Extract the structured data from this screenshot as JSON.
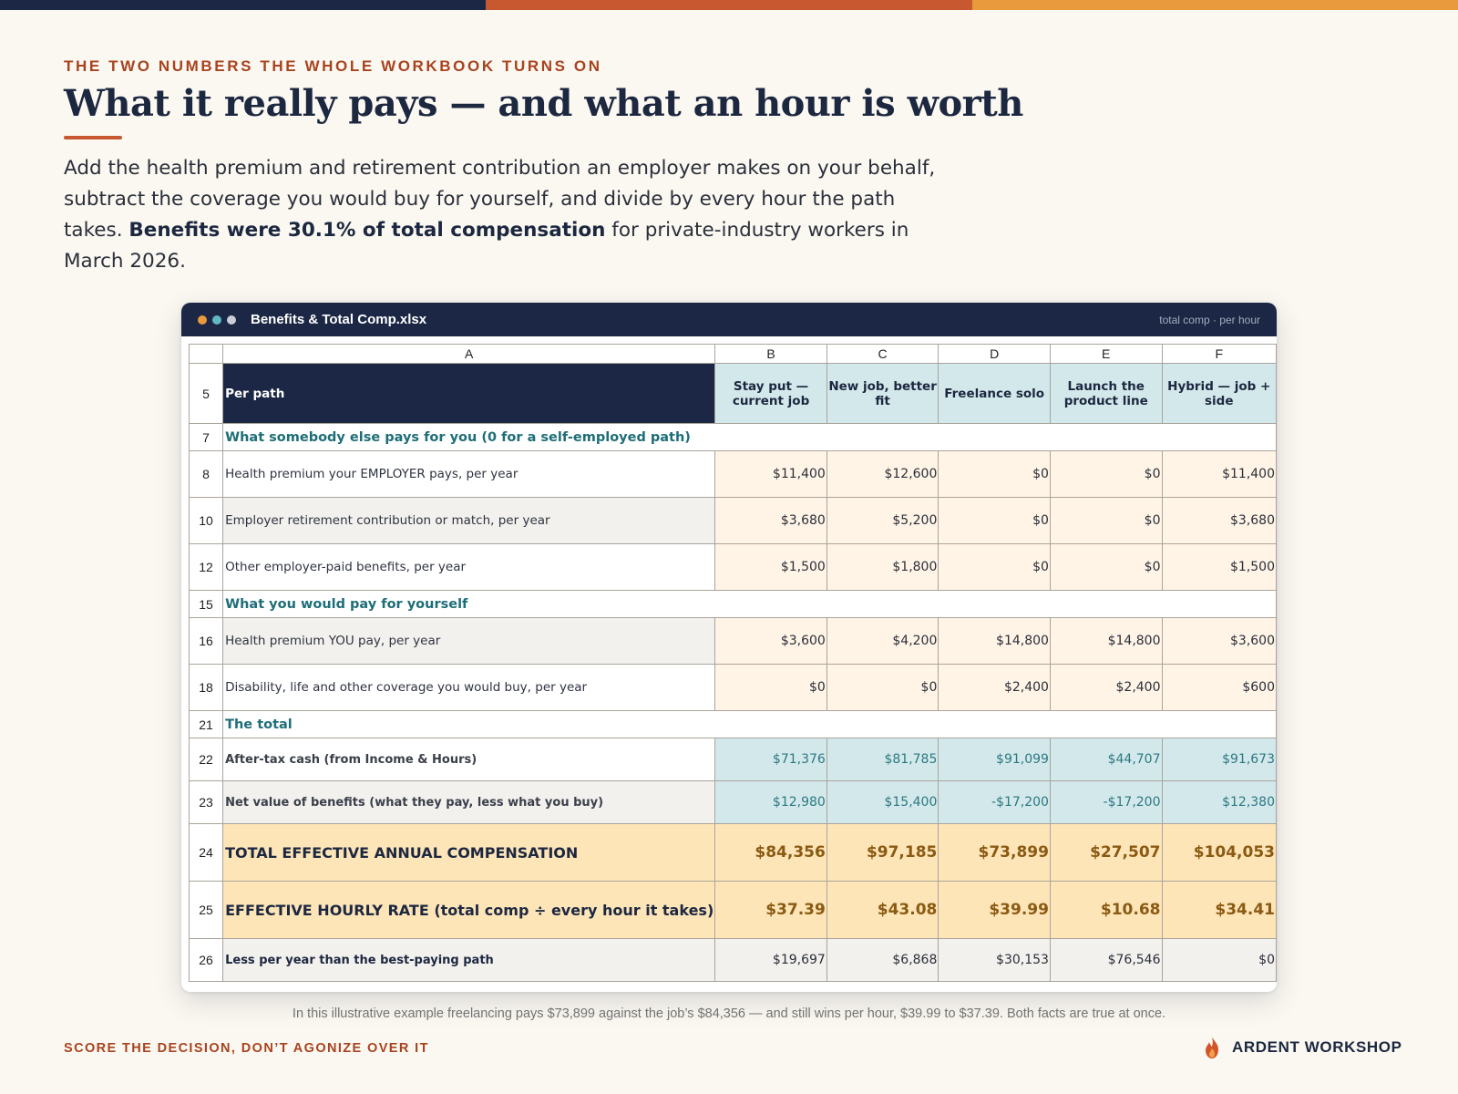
{
  "colors": {
    "navy": "#1b2744",
    "rust": "#c8582f",
    "amber": "#e89a3c",
    "teal": "#1e6e78",
    "input_fill": "#fff4e6",
    "calc_fill": "#d3e8ea",
    "total_fill": "#fde5b8"
  },
  "eyebrow": "THE TWO NUMBERS THE WHOLE WORKBOOK TURNS ON",
  "headline": "What it really pays — and what an hour is worth",
  "lede": {
    "before": "Add the health premium and retirement contribution an employer makes on your behalf, subtract the coverage you would buy for yourself, and divide by every hour the path takes. ",
    "bold": "Benefits were 30.1% of total compensation",
    "after": " for private-industry workers in March 2026."
  },
  "window": {
    "title": "Benefits & Total Comp.xlsx",
    "hint": "total comp · per hour",
    "dots": [
      "#e89a3c",
      "#5fb8c2",
      "#c9ced8"
    ]
  },
  "sheet": {
    "col_letters": [
      "A",
      "B",
      "C",
      "D",
      "E",
      "F"
    ],
    "header": {
      "row": "5",
      "label": "Per path",
      "paths": [
        "Stay put — current job",
        "New job, better fit",
        "Freelance solo",
        "Launch the product line",
        "Hybrid — job + side"
      ]
    },
    "sections": {
      "employer": {
        "row": "7",
        "label": "What somebody else pays for you  (0 for a self-employed path)"
      },
      "yourself": {
        "row": "15",
        "label": "What you would pay for yourself"
      },
      "total": {
        "row": "21",
        "label": "The total"
      }
    },
    "rows": {
      "r8": {
        "row": "8",
        "label": "Health premium your EMPLOYER pays, per year",
        "values": [
          "$11,400",
          "$12,600",
          "$0",
          "$0",
          "$11,400"
        ]
      },
      "r10": {
        "row": "10",
        "label": "Employer retirement contribution or match, per year",
        "values": [
          "$3,680",
          "$5,200",
          "$0",
          "$0",
          "$3,680"
        ]
      },
      "r12": {
        "row": "12",
        "label": "Other employer-paid benefits, per year",
        "values": [
          "$1,500",
          "$1,800",
          "$0",
          "$0",
          "$1,500"
        ]
      },
      "r16": {
        "row": "16",
        "label": "Health premium YOU pay, per year",
        "values": [
          "$3,600",
          "$4,200",
          "$14,800",
          "$14,800",
          "$3,600"
        ]
      },
      "r18": {
        "row": "18",
        "label": "Disability, life and other coverage you would buy, per year",
        "values": [
          "$0",
          "$0",
          "$2,400",
          "$2,400",
          "$600"
        ]
      },
      "r22": {
        "row": "22",
        "label": "After-tax cash  (from Income & Hours)",
        "values": [
          "$71,376",
          "$81,785",
          "$91,099",
          "$44,707",
          "$91,673"
        ]
      },
      "r23": {
        "row": "23",
        "label": "Net value of benefits  (what they pay, less what you buy)",
        "values": [
          "$12,980",
          "$15,400",
          "-$17,200",
          "-$17,200",
          "$12,380"
        ]
      },
      "r24": {
        "row": "24",
        "label": "TOTAL EFFECTIVE ANNUAL COMPENSATION",
        "values": [
          "$84,356",
          "$97,185",
          "$73,899",
          "$27,507",
          "$104,053"
        ]
      },
      "r25": {
        "row": "25",
        "label": "EFFECTIVE HOURLY RATE  (total comp ÷ every hour it takes)",
        "values": [
          "$37.39",
          "$43.08",
          "$39.99",
          "$10.68",
          "$34.41"
        ]
      },
      "r26": {
        "row": "26",
        "label": "Less per year than the best-paying path",
        "values": [
          "$19,697",
          "$6,868",
          "$30,153",
          "$76,546",
          "$0"
        ]
      }
    }
  },
  "caption": "In this illustrative example freelancing pays $73,899 against the job’s $84,356 — and still wins per hour, $39.99 to $37.39. Both facts are true at once.",
  "footer": {
    "tagline": "SCORE THE DECISION, DON’T AGONIZE OVER IT",
    "brand": "ARDENT WORKSHOP",
    "brand_icon": "flame-icon"
  }
}
